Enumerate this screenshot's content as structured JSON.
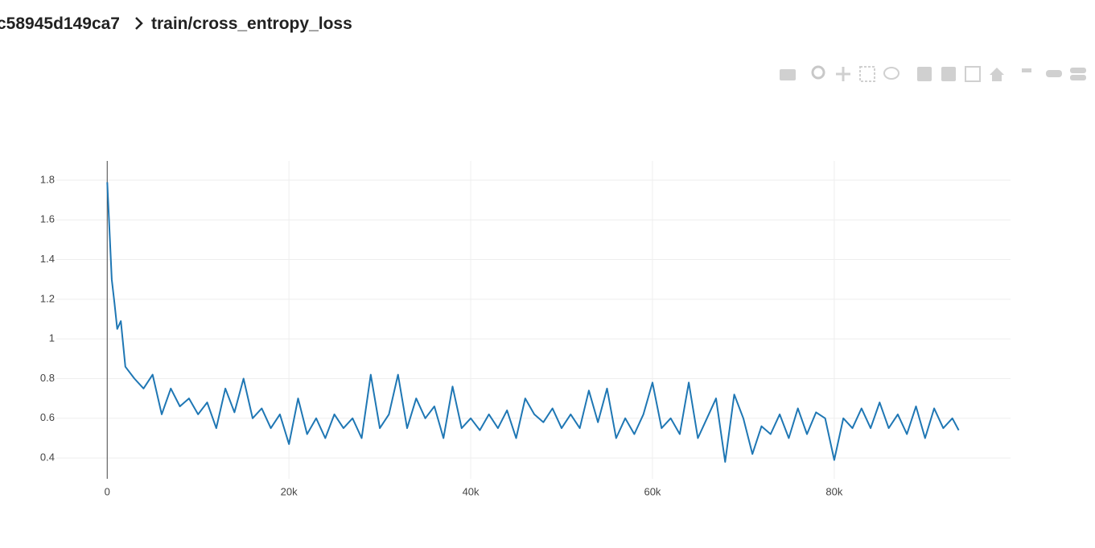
{
  "header": {
    "run": "c58945d149ca7",
    "tag": "train/cross_entropy_loss"
  },
  "chart_data": {
    "type": "line",
    "x": [
      0,
      200,
      500,
      800,
      1100,
      1500,
      2000,
      3000,
      4000,
      5000,
      6000,
      7000,
      8000,
      9000,
      10000,
      11000,
      12000,
      13000,
      14000,
      15000,
      16000,
      17000,
      18000,
      19000,
      20000,
      21000,
      22000,
      23000,
      24000,
      25000,
      26000,
      27000,
      28000,
      29000,
      30000,
      31000,
      32000,
      33000,
      34000,
      35000,
      36000,
      37000,
      38000,
      39000,
      40000,
      41000,
      42000,
      43000,
      44000,
      45000,
      46000,
      47000,
      48000,
      49000,
      50000,
      51000,
      52000,
      53000,
      54000,
      55000,
      56000,
      57000,
      58000,
      59000,
      60000,
      61000,
      62000,
      63000,
      64000,
      65000,
      66000,
      67000,
      68000,
      69000,
      70000,
      71000,
      72000,
      73000,
      74000,
      75000,
      76000,
      77000,
      78000,
      79000,
      80000,
      81000,
      82000,
      83000,
      84000,
      85000,
      86000,
      87000,
      88000,
      89000,
      90000,
      91000,
      92000,
      93000,
      93700
    ],
    "series": [
      {
        "name": "train/cross_entropy_loss",
        "color": "#1f77b4",
        "values": [
          1.79,
          1.6,
          1.3,
          1.18,
          1.05,
          1.09,
          0.86,
          0.8,
          0.75,
          0.82,
          0.62,
          0.75,
          0.66,
          0.7,
          0.62,
          0.68,
          0.55,
          0.75,
          0.63,
          0.8,
          0.6,
          0.65,
          0.55,
          0.62,
          0.47,
          0.7,
          0.52,
          0.6,
          0.5,
          0.62,
          0.55,
          0.6,
          0.5,
          0.82,
          0.55,
          0.62,
          0.82,
          0.55,
          0.7,
          0.6,
          0.66,
          0.5,
          0.76,
          0.55,
          0.6,
          0.54,
          0.62,
          0.55,
          0.64,
          0.5,
          0.7,
          0.62,
          0.58,
          0.65,
          0.55,
          0.62,
          0.55,
          0.74,
          0.58,
          0.75,
          0.5,
          0.6,
          0.52,
          0.62,
          0.78,
          0.55,
          0.6,
          0.52,
          0.78,
          0.5,
          0.6,
          0.7,
          0.38,
          0.72,
          0.6,
          0.42,
          0.56,
          0.52,
          0.62,
          0.5,
          0.65,
          0.52,
          0.63,
          0.6,
          0.39,
          0.6,
          0.55,
          0.65,
          0.55,
          0.68,
          0.55,
          0.62,
          0.52,
          0.66,
          0.5,
          0.65,
          0.55,
          0.6,
          0.54
        ]
      }
    ],
    "xlim": [
      -5600,
      99400
    ],
    "xticks": [
      0,
      {
        "value": 20000,
        "label": "20k"
      },
      {
        "value": 40000,
        "label": "40k"
      },
      {
        "value": 60000,
        "label": "60k"
      },
      {
        "value": 80000,
        "label": "80k"
      }
    ],
    "ylim": [
      0.295,
      1.897
    ],
    "yticks": [
      0.4,
      0.6,
      0.8,
      1,
      1.2,
      1.4,
      1.6,
      1.8
    ],
    "grid": true
  }
}
